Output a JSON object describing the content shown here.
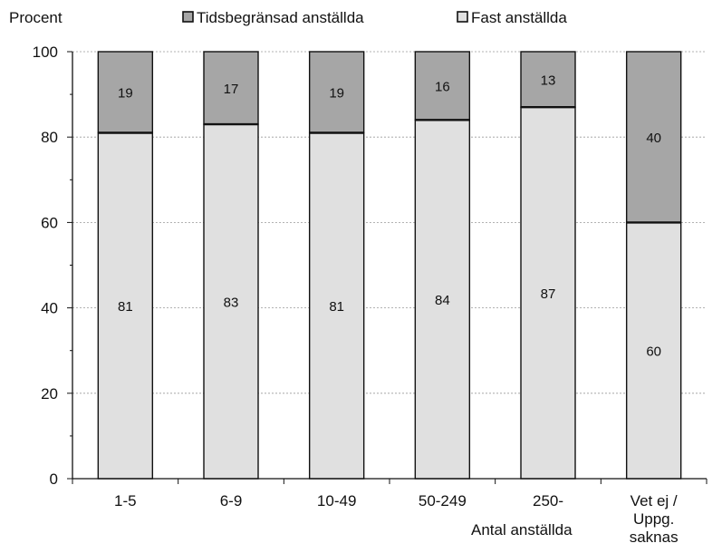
{
  "chart_data": {
    "type": "bar",
    "stacked": true,
    "ylabel": "Procent",
    "xlabel": "Antal anställda",
    "ylim": [
      0,
      100
    ],
    "yticks": [
      0,
      20,
      40,
      60,
      80,
      100
    ],
    "categories": [
      "1-5",
      "6-9",
      "10-49",
      "50-249",
      "250-",
      "Vet ej / Uppg. saknas"
    ],
    "category_lines": [
      [
        "1-5"
      ],
      [
        "6-9"
      ],
      [
        "10-49"
      ],
      [
        "50-249"
      ],
      [
        "250-"
      ],
      [
        "Vet ej /",
        "Uppg.",
        "saknas"
      ]
    ],
    "grid": true,
    "legend_position": "top",
    "series": [
      {
        "name": "Fast anställda",
        "color": "#e0e0e0",
        "values": [
          81,
          83,
          81,
          84,
          87,
          60
        ]
      },
      {
        "name": "Tidsbegränsad anställda",
        "color": "#a6a6a6",
        "values": [
          19,
          17,
          19,
          16,
          13,
          40
        ]
      }
    ],
    "legend_order": [
      1,
      0
    ]
  }
}
